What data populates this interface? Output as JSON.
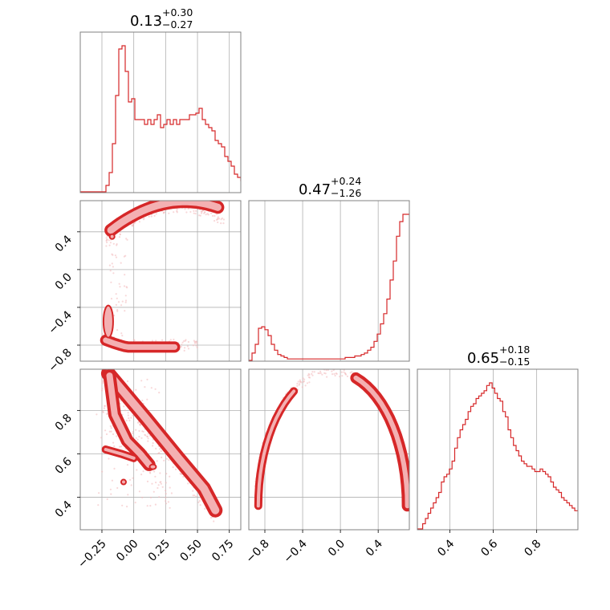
{
  "colors": {
    "line": "#d62728",
    "fill": "#f4b0b2",
    "scatter": "#f2b8ba",
    "grid": "#b0b0b0",
    "frame": "#808080"
  },
  "chart_data": {
    "type": "corner",
    "parameters": 3,
    "grid": true,
    "titles": [
      {
        "median": "0.13",
        "plus": "+0.30",
        "minus": "−0.27"
      },
      {
        "median": "0.47",
        "plus": "+0.24",
        "minus": "−1.26"
      },
      {
        "median": "0.65",
        "plus": "+0.18",
        "minus": "−0.15"
      }
    ],
    "ranges": [
      [
        -0.42,
        0.84
      ],
      [
        -0.97,
        0.73
      ],
      [
        0.25,
        0.99
      ]
    ],
    "ticks": [
      {
        "values": [
          -0.25,
          0.0,
          0.25,
          0.5,
          0.75
        ],
        "labels": [
          "−0.25",
          "0.00",
          "0.25",
          "0.50",
          "0.75"
        ]
      },
      {
        "values": [
          -0.8,
          -0.4,
          0.0,
          0.4
        ],
        "labels": [
          "−0.8",
          "−0.4",
          "0.0",
          "0.4"
        ]
      },
      {
        "values": [
          0.4,
          0.6,
          0.8
        ],
        "labels": [
          "0.4",
          "0.6",
          "0.8"
        ]
      }
    ],
    "histograms": [
      {
        "x_start": -0.42,
        "bin_width": 0.0252,
        "counts": [
          0,
          0,
          0,
          0,
          0,
          0,
          0,
          0,
          0.04,
          0.12,
          0.3,
          0.6,
          0.89,
          0.91,
          0.75,
          0.56,
          0.58,
          0.45,
          0.45,
          0.45,
          0.42,
          0.45,
          0.42,
          0.45,
          0.48,
          0.4,
          0.42,
          0.45,
          0.42,
          0.45,
          0.42,
          0.45,
          0.45,
          0.45,
          0.48,
          0.48,
          0.49,
          0.52,
          0.45,
          0.42,
          0.4,
          0.38,
          0.32,
          0.3,
          0.28,
          0.22,
          0.19,
          0.16,
          0.11,
          0.09,
          0.07,
          0.04,
          0.02,
          0.01,
          0.01,
          0.01,
          0.0,
          0.0,
          0.0,
          0.0
        ]
      },
      {
        "x_start": -0.97,
        "bin_width": 0.034,
        "counts": [
          0,
          0.05,
          0.11,
          0.22,
          0.23,
          0.21,
          0.17,
          0.11,
          0.07,
          0.04,
          0.03,
          0.02,
          0.01,
          0.01,
          0.01,
          0.01,
          0.01,
          0.01,
          0.01,
          0.01,
          0.01,
          0.01,
          0.01,
          0.01,
          0.01,
          0.01,
          0.01,
          0.01,
          0.01,
          0.01,
          0.02,
          0.02,
          0.02,
          0.03,
          0.03,
          0.04,
          0.05,
          0.07,
          0.09,
          0.13,
          0.18,
          0.25,
          0.32,
          0.42,
          0.55,
          0.68,
          0.85,
          0.95,
          1.0,
          1.0
        ]
      },
      {
        "x_start": 0.25,
        "bin_width": 0.0123,
        "counts": [
          0.0,
          0.0,
          0.02,
          0.04,
          0.06,
          0.08,
          0.1,
          0.12,
          0.14,
          0.18,
          0.2,
          0.21,
          0.23,
          0.26,
          0.31,
          0.35,
          0.38,
          0.4,
          0.42,
          0.45,
          0.47,
          0.48,
          0.5,
          0.51,
          0.52,
          0.53,
          0.55,
          0.56,
          0.54,
          0.52,
          0.5,
          0.49,
          0.45,
          0.43,
          0.38,
          0.35,
          0.32,
          0.3,
          0.28,
          0.26,
          0.25,
          0.24,
          0.24,
          0.23,
          0.22,
          0.22,
          0.23,
          0.22,
          0.21,
          0.2,
          0.18,
          0.16,
          0.15,
          0.14,
          0.12,
          0.11,
          0.1,
          0.09,
          0.08,
          0.07
        ]
      }
    ],
    "density_2d": [
      {
        "x_param": 0,
        "y_param": 1,
        "note": "two branches: upper arc near y≈0.4–0.7, lower cluster near y≈−0.8"
      },
      {
        "x_param": 0,
        "y_param": 2,
        "note": "negative linear band from (−0.25, 0.98) to (0.65, 0.32) plus secondary lobe"
      },
      {
        "x_param": 1,
        "y_param": 2,
        "note": "semicircular arc from (−0.85, 0.38) through (0.0, 0.98) to (0.7, 0.4)"
      }
    ]
  }
}
